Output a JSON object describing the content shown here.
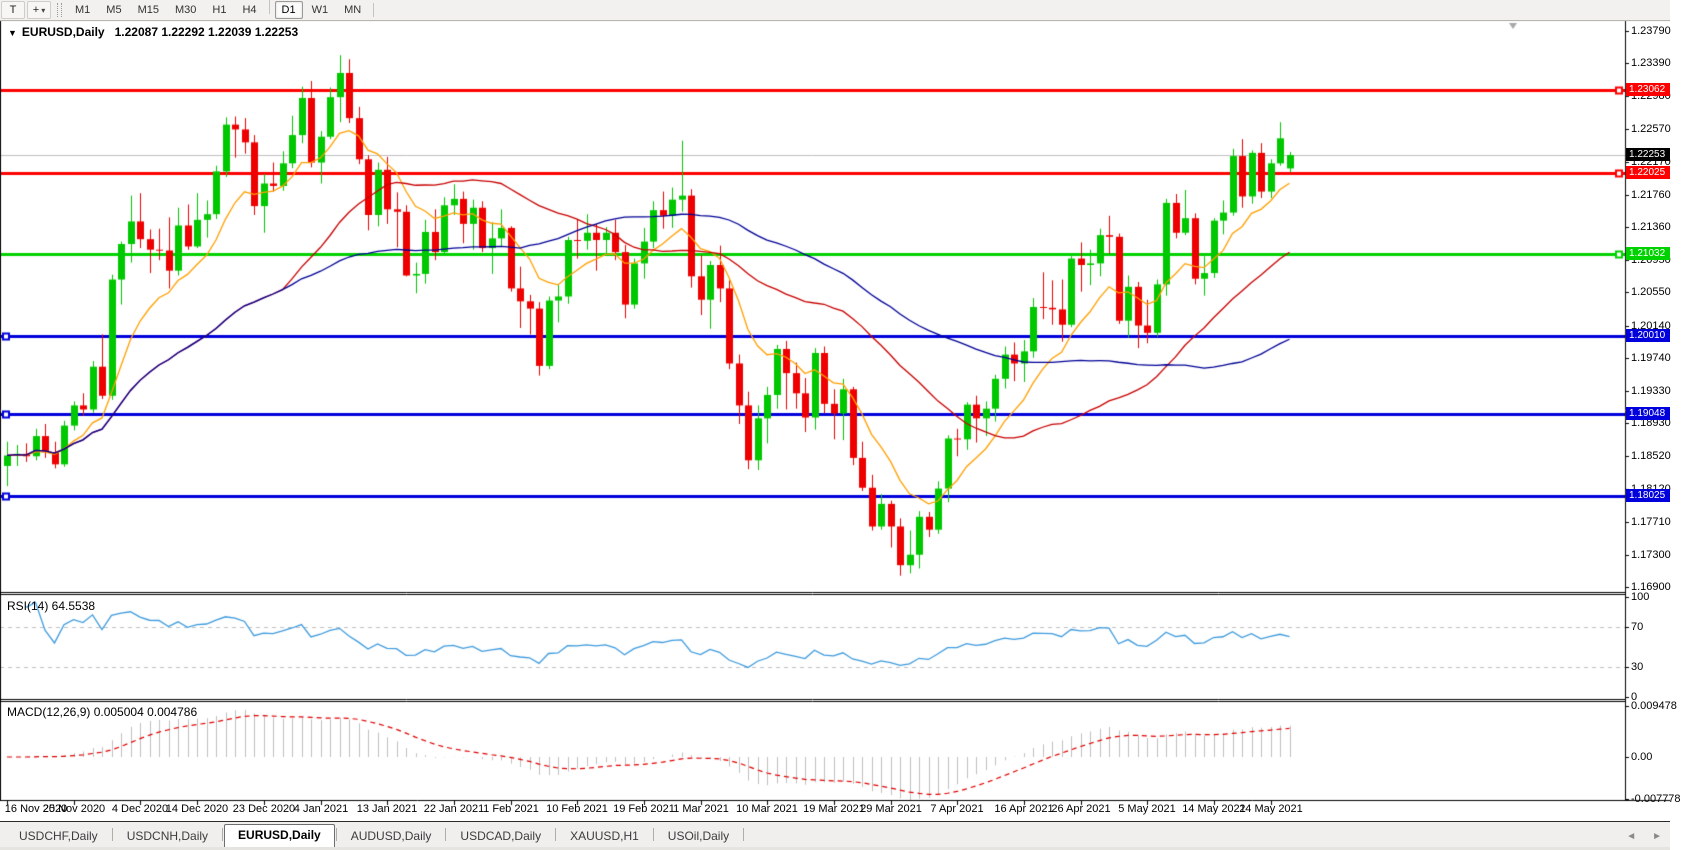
{
  "toolbar": {
    "text_tool_label": "T",
    "cursor_icon_glyph": "+",
    "dropdown_caret": "▾",
    "timeframes": [
      {
        "label": "M1",
        "active": false
      },
      {
        "label": "M5",
        "active": false
      },
      {
        "label": "M15",
        "active": false
      },
      {
        "label": "M30",
        "active": false
      },
      {
        "label": "H1",
        "active": false
      },
      {
        "label": "H4",
        "active": false
      },
      {
        "label": "D1",
        "active": true
      },
      {
        "label": "W1",
        "active": false
      },
      {
        "label": "MN",
        "active": false
      }
    ]
  },
  "window": {
    "title_caret": "▼",
    "title": "EURUSD,Daily",
    "ohlc": "1.22087 1.22292 1.22039 1.22253"
  },
  "rsi_label": "RSI(14) 64.5538",
  "macd_label": "MACD(12,26,9) 0.005004 0.004786",
  "price_axis": {
    "ticks": [
      "1.23790",
      "1.23390",
      "1.22980",
      "1.22570",
      "1.22170",
      "1.21760",
      "1.21360",
      "1.20950",
      "1.20550",
      "1.20140",
      "1.19740",
      "1.19330",
      "1.18930",
      "1.18520",
      "1.18120",
      "1.17710",
      "1.17300",
      "1.16900"
    ]
  },
  "rsi_axis": {
    "ticks": [
      {
        "label": "100",
        "value": 100
      },
      {
        "label": "70",
        "value": 70
      },
      {
        "label": "30",
        "value": 30
      },
      {
        "label": "0",
        "value": 0
      }
    ]
  },
  "macd_axis": {
    "ticks": [
      {
        "label": "0.009478",
        "value": 0.009478
      },
      {
        "label": "0.00",
        "value": 0
      },
      {
        "label": "-0.007778",
        "value": -0.007778
      }
    ]
  },
  "current_price": {
    "label": "1.22253",
    "value": 1.22253,
    "line_color": "#c0c0c0",
    "label_bg": "#000000"
  },
  "levels": [
    {
      "label": "1.23062",
      "value": 1.23062,
      "color": "#ff0000",
      "handle": "right"
    },
    {
      "label": "1.22025",
      "value": 1.22025,
      "color": "#ff0000",
      "handle": "right"
    },
    {
      "label": "1.21032",
      "value": 1.21032,
      "color": "#00d200",
      "handle": "right"
    },
    {
      "label": "1.20010",
      "value": 1.2001,
      "color": "#0000dc",
      "handle": "left"
    },
    {
      "label": "1.19048",
      "value": 1.19048,
      "color": "#0000dc",
      "handle": "left"
    },
    {
      "label": "1.18025",
      "value": 1.18025,
      "color": "#0000dc",
      "handle": "left"
    }
  ],
  "tabs": [
    {
      "label": "USDCHF,Daily",
      "active": false
    },
    {
      "label": "USDCNH,Daily",
      "active": false
    },
    {
      "label": "EURUSD,Daily",
      "active": true
    },
    {
      "label": "AUDUSD,Daily",
      "active": false
    },
    {
      "label": "USDCAD,Daily",
      "active": false
    },
    {
      "label": "XAUUSD,H1",
      "active": false
    },
    {
      "label": "USOil,Daily",
      "active": false
    }
  ],
  "tab_arrows": {
    "left": "◄",
    "right": "►"
  },
  "chart_data": {
    "type": "candlestick",
    "title": "EURUSD,Daily",
    "symbol": "EURUSD",
    "timeframe": "Daily",
    "ylim": [
      1.169,
      1.2379
    ],
    "colors": {
      "up": "#00c800",
      "down": "#ee0000",
      "ma_fast": "#ffa000",
      "ma_mid": "#c80000",
      "ma_slow": "#000096",
      "rsi": "#3e9bde",
      "macd_hist": "#c0c0c0",
      "macd_signal": "#e00000",
      "ind_level_dash": "#c0c0c0"
    },
    "overlays": [
      {
        "name": "ema-10",
        "type": "ema",
        "period": 10,
        "color": "#ffa000"
      },
      {
        "name": "sma-30",
        "type": "sma",
        "period": 30,
        "color": "#c80000"
      },
      {
        "name": "sma-55",
        "type": "sma",
        "period": 55,
        "color": "#000096"
      }
    ],
    "indicators": {
      "rsi": {
        "period": 14,
        "last": 64.5538,
        "levels": [
          70,
          30
        ],
        "range": [
          0,
          100
        ]
      },
      "macd": {
        "fast": 12,
        "slow": 26,
        "signal": 9,
        "last_main": 0.005004,
        "last_signal": 0.004786,
        "range": [
          -0.007778,
          0.009478
        ]
      }
    },
    "time_ticks": [
      {
        "label": "16 Nov 2020",
        "i": 0
      },
      {
        "label": "25 Nov 2020",
        "i": 7
      },
      {
        "label": "4 Dec 2020",
        "i": 14
      },
      {
        "label": "14 Dec 2020",
        "i": 20
      },
      {
        "label": "23 Dec 2020",
        "i": 27
      },
      {
        "label": "4 Jan 2021",
        "i": 33
      },
      {
        "label": "13 Jan 2021",
        "i": 40
      },
      {
        "label": "22 Jan 2021",
        "i": 47
      },
      {
        "label": "1 Feb 2021",
        "i": 53
      },
      {
        "label": "10 Feb 2021",
        "i": 60
      },
      {
        "label": "19 Feb 2021",
        "i": 67
      },
      {
        "label": "1 Mar 2021",
        "i": 73
      },
      {
        "label": "10 Mar 2021",
        "i": 80
      },
      {
        "label": "19 Mar 2021",
        "i": 87
      },
      {
        "label": "29 Mar 2021",
        "i": 93
      },
      {
        "label": "7 Apr 2021",
        "i": 100
      },
      {
        "label": "16 Apr 2021",
        "i": 107
      },
      {
        "label": "26 Apr 2021",
        "i": 113
      },
      {
        "label": "5 May 2021",
        "i": 120
      },
      {
        "label": "14 May 2021",
        "i": 127
      },
      {
        "label": "24 May 2021",
        "i": 133
      }
    ],
    "candles": [
      [
        1.184,
        1.187,
        1.1815,
        1.1853
      ],
      [
        1.1853,
        1.1866,
        1.184,
        1.1855
      ],
      [
        1.1855,
        1.1868,
        1.1845,
        1.1852
      ],
      [
        1.1852,
        1.1886,
        1.1847,
        1.1877
      ],
      [
        1.1877,
        1.1892,
        1.185,
        1.1857
      ],
      [
        1.1857,
        1.187,
        1.1837,
        1.1842
      ],
      [
        1.1842,
        1.1896,
        1.1839,
        1.189
      ],
      [
        1.189,
        1.192,
        1.1884,
        1.1915
      ],
      [
        1.1915,
        1.193,
        1.1902,
        1.191
      ],
      [
        1.191,
        1.197,
        1.1906,
        1.1963
      ],
      [
        1.1963,
        1.2003,
        1.1923,
        1.1927
      ],
      [
        1.1927,
        1.2077,
        1.1922,
        1.2071
      ],
      [
        1.2071,
        1.2118,
        1.204,
        1.2115
      ],
      [
        1.2115,
        1.2175,
        1.2092,
        1.2143
      ],
      [
        1.2143,
        1.2178,
        1.211,
        1.2121
      ],
      [
        1.2121,
        1.2133,
        1.2079,
        1.2108
      ],
      [
        1.2108,
        1.2134,
        1.2095,
        1.2107
      ],
      [
        1.2107,
        1.2148,
        1.206,
        1.2082
      ],
      [
        1.2082,
        1.216,
        1.2076,
        1.2138
      ],
      [
        1.2138,
        1.2164,
        1.2108,
        1.2112
      ],
      [
        1.2112,
        1.2178,
        1.211,
        1.2145
      ],
      [
        1.2145,
        1.2169,
        1.2123,
        1.2152
      ],
      [
        1.2152,
        1.2212,
        1.2146,
        1.2205
      ],
      [
        1.2205,
        1.2272,
        1.2198,
        1.2263
      ],
      [
        1.2263,
        1.2273,
        1.2222,
        1.2257
      ],
      [
        1.2257,
        1.2271,
        1.2227,
        1.2241
      ],
      [
        1.2241,
        1.225,
        1.2151,
        1.2162
      ],
      [
        1.2162,
        1.2202,
        1.2129,
        1.219
      ],
      [
        1.219,
        1.2216,
        1.218,
        1.2187
      ],
      [
        1.2187,
        1.223,
        1.2181,
        1.2215
      ],
      [
        1.2215,
        1.2274,
        1.2209,
        1.225
      ],
      [
        1.225,
        1.231,
        1.224,
        1.2296
      ],
      [
        1.2296,
        1.2317,
        1.221,
        1.2216
      ],
      [
        1.2216,
        1.2255,
        1.219,
        1.2248
      ],
      [
        1.2248,
        1.2309,
        1.2245,
        1.2297
      ],
      [
        1.2297,
        1.2349,
        1.2266,
        1.2327
      ],
      [
        1.2327,
        1.2344,
        1.2265,
        1.2271
      ],
      [
        1.2271,
        1.2285,
        1.2214,
        1.222
      ],
      [
        1.222,
        1.2225,
        1.2132,
        1.2151
      ],
      [
        1.2151,
        1.2216,
        1.2137,
        1.2207
      ],
      [
        1.2207,
        1.2223,
        1.214,
        1.2158
      ],
      [
        1.2158,
        1.2179,
        1.2111,
        1.2155
      ],
      [
        1.2155,
        1.2163,
        1.2075,
        1.2076
      ],
      [
        1.2076,
        1.2092,
        1.2054,
        1.2078
      ],
      [
        1.2078,
        1.2145,
        1.2066,
        1.213
      ],
      [
        1.213,
        1.2158,
        1.2095,
        1.2105
      ],
      [
        1.2105,
        1.2173,
        1.2102,
        1.2163
      ],
      [
        1.2163,
        1.2189,
        1.2151,
        1.2171
      ],
      [
        1.2171,
        1.218,
        1.2116,
        1.214
      ],
      [
        1.214,
        1.217,
        1.2108,
        1.216
      ],
      [
        1.216,
        1.2168,
        1.2105,
        1.211
      ],
      [
        1.211,
        1.2142,
        1.2078,
        1.2122
      ],
      [
        1.2122,
        1.2158,
        1.2112,
        1.2135
      ],
      [
        1.2135,
        1.2137,
        1.2056,
        1.206
      ],
      [
        1.206,
        1.2087,
        1.2011,
        1.2044
      ],
      [
        1.2044,
        1.2052,
        1.2003,
        1.2035
      ],
      [
        1.2035,
        1.2043,
        1.1952,
        1.1964
      ],
      [
        1.1964,
        1.205,
        1.196,
        1.2045
      ],
      [
        1.2045,
        1.2065,
        1.2018,
        1.205
      ],
      [
        1.205,
        1.2124,
        1.2041,
        1.212
      ],
      [
        1.212,
        1.2145,
        1.2097,
        1.2119
      ],
      [
        1.2119,
        1.2152,
        1.2108,
        1.2129
      ],
      [
        1.2129,
        1.214,
        1.2082,
        1.212
      ],
      [
        1.212,
        1.2136,
        1.2103,
        1.2129
      ],
      [
        1.2129,
        1.2145,
        1.2095,
        1.2105
      ],
      [
        1.2105,
        1.2114,
        1.2023,
        1.204
      ],
      [
        1.204,
        1.2097,
        1.2035,
        1.2091
      ],
      [
        1.2091,
        1.2135,
        1.2072,
        1.2118
      ],
      [
        1.2118,
        1.2168,
        1.211,
        1.2157
      ],
      [
        1.2157,
        1.218,
        1.2134,
        1.215
      ],
      [
        1.215,
        1.2185,
        1.2135,
        1.217
      ],
      [
        1.217,
        1.2243,
        1.2155,
        1.2175
      ],
      [
        1.2175,
        1.2183,
        1.2061,
        1.2075
      ],
      [
        1.2075,
        1.2101,
        1.2027,
        1.2046
      ],
      [
        1.2046,
        1.2094,
        1.201,
        1.2089
      ],
      [
        1.2089,
        1.2113,
        1.2043,
        1.206
      ],
      [
        1.206,
        1.207,
        1.196,
        1.1967
      ],
      [
        1.1967,
        1.1978,
        1.1892,
        1.1915
      ],
      [
        1.1915,
        1.1932,
        1.1836,
        1.1847
      ],
      [
        1.1847,
        1.1915,
        1.1835,
        1.1899
      ],
      [
        1.1899,
        1.1938,
        1.1868,
        1.1928
      ],
      [
        1.1928,
        1.199,
        1.1911,
        1.1985
      ],
      [
        1.1985,
        1.1995,
        1.191,
        1.1955
      ],
      [
        1.1955,
        1.1968,
        1.1911,
        1.193
      ],
      [
        1.193,
        1.1949,
        1.1882,
        1.19
      ],
      [
        1.19,
        1.1986,
        1.1885,
        1.198
      ],
      [
        1.198,
        1.1988,
        1.1905,
        1.1917
      ],
      [
        1.1917,
        1.1935,
        1.1873,
        1.1905
      ],
      [
        1.1905,
        1.1948,
        1.1872,
        1.1935
      ],
      [
        1.1935,
        1.1938,
        1.1841,
        1.185
      ],
      [
        1.185,
        1.187,
        1.1809,
        1.1813
      ],
      [
        1.1813,
        1.1829,
        1.176,
        1.1765
      ],
      [
        1.1765,
        1.1805,
        1.1761,
        1.1793
      ],
      [
        1.1793,
        1.1797,
        1.1739,
        1.1765
      ],
      [
        1.1765,
        1.1775,
        1.1704,
        1.1717
      ],
      [
        1.1717,
        1.176,
        1.1707,
        1.173
      ],
      [
        1.173,
        1.1784,
        1.1713,
        1.1777
      ],
      [
        1.1777,
        1.1783,
        1.1752,
        1.1761
      ],
      [
        1.1761,
        1.1821,
        1.1756,
        1.1812
      ],
      [
        1.1812,
        1.1878,
        1.1795,
        1.1874
      ],
      [
        1.1874,
        1.1886,
        1.1852,
        1.1873
      ],
      [
        1.1873,
        1.1919,
        1.186,
        1.1916
      ],
      [
        1.1916,
        1.1927,
        1.1869,
        1.1899
      ],
      [
        1.1899,
        1.192,
        1.1877,
        1.1911
      ],
      [
        1.1911,
        1.1953,
        1.1895,
        1.1948
      ],
      [
        1.1948,
        1.1988,
        1.1936,
        1.1978
      ],
      [
        1.1978,
        1.1993,
        1.1945,
        1.1967
      ],
      [
        1.1967,
        1.1996,
        1.1944,
        1.1982
      ],
      [
        1.1982,
        1.2048,
        1.1974,
        1.2037
      ],
      [
        1.2037,
        1.208,
        1.2022,
        1.2036
      ],
      [
        1.2036,
        1.207,
        1.2015,
        1.2034
      ],
      [
        1.2034,
        1.2071,
        1.1994,
        1.2015
      ],
      [
        1.2015,
        1.21,
        1.2012,
        1.2097
      ],
      [
        1.2097,
        1.2117,
        1.2056,
        1.2089
      ],
      [
        1.2089,
        1.2108,
        1.2064,
        1.2091
      ],
      [
        1.2091,
        1.2134,
        1.2075,
        1.2126
      ],
      [
        1.2126,
        1.215,
        1.2103,
        1.2124
      ],
      [
        1.2124,
        1.2128,
        1.2016,
        1.202
      ],
      [
        1.202,
        1.2076,
        1.1999,
        1.2062
      ],
      [
        1.2062,
        1.2068,
        1.1986,
        1.2014
      ],
      [
        1.2014,
        1.2046,
        1.1992,
        1.2005
      ],
      [
        1.2005,
        1.2071,
        1.2,
        1.2065
      ],
      [
        1.2065,
        1.2171,
        1.2051,
        1.2166
      ],
      [
        1.2166,
        1.2177,
        1.2122,
        1.2129
      ],
      [
        1.2129,
        1.2182,
        1.2126,
        1.2147
      ],
      [
        1.2147,
        1.2153,
        1.2065,
        1.2072
      ],
      [
        1.2072,
        1.21,
        1.2051,
        1.2079
      ],
      [
        1.2079,
        1.2147,
        1.2073,
        1.2144
      ],
      [
        1.2144,
        1.2169,
        1.2127,
        1.2154
      ],
      [
        1.2154,
        1.2233,
        1.215,
        1.2224
      ],
      [
        1.2224,
        1.2245,
        1.216,
        1.2174
      ],
      [
        1.2174,
        1.2231,
        1.2165,
        1.2228
      ],
      [
        1.2228,
        1.224,
        1.2172,
        1.218
      ],
      [
        1.218,
        1.222,
        1.2172,
        1.2215
      ],
      [
        1.2215,
        1.2266,
        1.2212,
        1.2246
      ],
      [
        1.22087,
        1.22292,
        1.22039,
        1.22253
      ]
    ]
  }
}
